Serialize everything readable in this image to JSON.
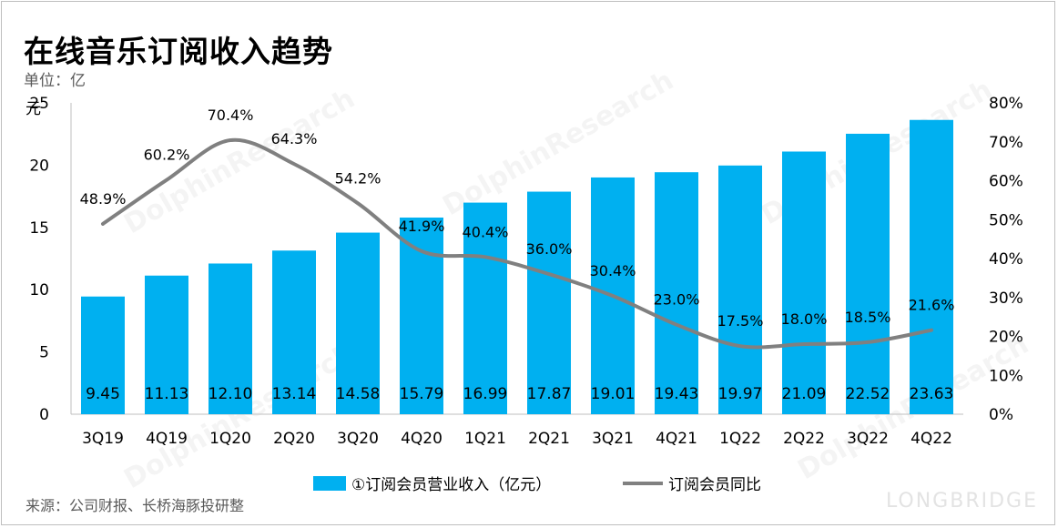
{
  "title": "在线音乐订阅收入趋势",
  "unit": "单位：亿",
  "source": "来源：公司财报、长桥海豚投研整",
  "watermark": "LONGBRIDGE",
  "colors": {
    "bar": "#00b0f0",
    "line": "#808080"
  },
  "chart_data": {
    "type": "bar",
    "categories": [
      "3Q19",
      "4Q19",
      "1Q20",
      "2Q20",
      "3Q20",
      "4Q20",
      "1Q21",
      "2Q21",
      "3Q21",
      "4Q21",
      "1Q22",
      "2Q22",
      "3Q22",
      "4Q22"
    ],
    "series": [
      {
        "name": "①订阅会员营业收入（亿元）",
        "type": "bar",
        "axis": "left",
        "values": [
          9.45,
          11.13,
          12.1,
          13.14,
          14.58,
          15.79,
          16.99,
          17.87,
          19.01,
          19.43,
          19.97,
          21.09,
          22.52,
          23.63
        ],
        "labels": [
          "9.45",
          "11.13",
          "12.10",
          "13.14",
          "14.58",
          "15.79",
          "16.99",
          "17.87",
          "19.01",
          "19.43",
          "19.97",
          "21.09",
          "22.52",
          "23.63"
        ]
      },
      {
        "name": "订阅会员同比",
        "type": "line",
        "axis": "right",
        "values": [
          48.9,
          60.2,
          70.4,
          64.3,
          54.2,
          41.9,
          40.4,
          36.0,
          30.4,
          23.0,
          17.5,
          18.0,
          18.5,
          21.6
        ],
        "labels": [
          "48.9%",
          "60.2%",
          "70.4%",
          "64.3%",
          "54.2%",
          "41.9%",
          "40.4%",
          "36.0%",
          "30.4%",
          "23.0%",
          "17.5%",
          "18.0%",
          "18.5%",
          "21.6%"
        ]
      }
    ],
    "ylim_left": [
      0,
      25
    ],
    "yticks_left": [
      "0",
      "5",
      "10",
      "15",
      "20",
      "25"
    ],
    "ylim_right": [
      0,
      80
    ],
    "yticks_right": [
      "0%",
      "10%",
      "20%",
      "30%",
      "40%",
      "50%",
      "60%",
      "70%",
      "80%"
    ],
    "left_axis_unit": "元",
    "grid": false,
    "legend_position": "bottom"
  }
}
